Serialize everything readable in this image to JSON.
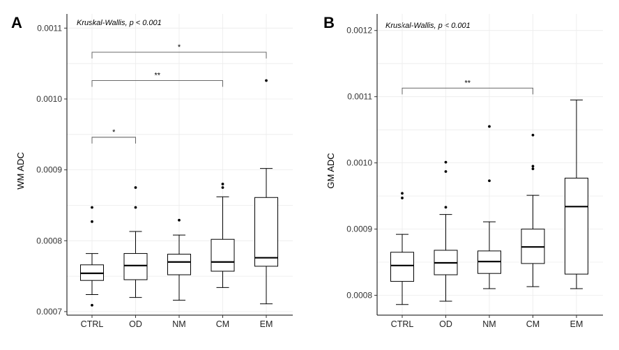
{
  "chart_data": [
    {
      "panel": "A",
      "type": "boxplot",
      "ylabel": "WM ADC",
      "xlabel": "",
      "annotation": "Kruskal-Wallis, p < 0.001",
      "ylim": [
        0.000695,
        0.00112
      ],
      "yticks": [
        0.0007,
        0.0008,
        0.0009,
        0.001,
        0.0011
      ],
      "ytick_labels": [
        "0.0007",
        "0.0008",
        "0.0009",
        "0.0010",
        "0.0011"
      ],
      "categories": [
        "CTRL",
        "OD",
        "NM",
        "CM",
        "EM"
      ],
      "boxes": [
        {
          "group": "CTRL",
          "whisker_low": 0.000724,
          "q1": 0.000744,
          "median": 0.000754,
          "q3": 0.000766,
          "whisker_high": 0.000782,
          "outliers": [
            0.000709,
            0.000827,
            0.000847
          ]
        },
        {
          "group": "OD",
          "whisker_low": 0.00072,
          "q1": 0.000745,
          "median": 0.000765,
          "q3": 0.000782,
          "whisker_high": 0.000813,
          "outliers": [
            0.000847,
            0.000875
          ]
        },
        {
          "group": "NM",
          "whisker_low": 0.000716,
          "q1": 0.000752,
          "median": 0.00077,
          "q3": 0.000781,
          "whisker_high": 0.000808,
          "outliers": [
            0.000829
          ]
        },
        {
          "group": "CM",
          "whisker_low": 0.000734,
          "q1": 0.000757,
          "median": 0.00077,
          "q3": 0.000802,
          "whisker_high": 0.000862,
          "outliers": [
            0.000875,
            0.00088
          ]
        },
        {
          "group": "EM",
          "whisker_low": 0.000711,
          "q1": 0.000764,
          "median": 0.000776,
          "q3": 0.000861,
          "whisker_high": 0.000902,
          "outliers": [
            0.001026
          ]
        }
      ],
      "significance": [
        {
          "from": "CTRL",
          "to": "OD",
          "label": "*",
          "y": 0.000946
        },
        {
          "from": "CTRL",
          "to": "CM",
          "label": "**",
          "y": 0.001026
        },
        {
          "from": "CTRL",
          "to": "EM",
          "label": "*",
          "y": 0.001066
        }
      ]
    },
    {
      "panel": "B",
      "type": "boxplot",
      "ylabel": "GM ADC",
      "xlabel": "",
      "annotation": "Kruskal-Wallis, p < 0.001",
      "ylim": [
        0.00077,
        0.001225
      ],
      "yticks": [
        0.0008,
        0.0009,
        0.001,
        0.0011,
        0.0012
      ],
      "ytick_labels": [
        "0.0008",
        "0.0009",
        "0.0010",
        "0.0011",
        "0.0012"
      ],
      "categories": [
        "CTRL",
        "OD",
        "NM",
        "CM",
        "EM"
      ],
      "boxes": [
        {
          "group": "CTRL",
          "whisker_low": 0.000786,
          "q1": 0.000821,
          "median": 0.000845,
          "q3": 0.000865,
          "whisker_high": 0.000892,
          "outliers": [
            0.000947,
            0.000954
          ]
        },
        {
          "group": "OD",
          "whisker_low": 0.000791,
          "q1": 0.000831,
          "median": 0.000849,
          "q3": 0.000868,
          "whisker_high": 0.000922,
          "outliers": [
            0.000933,
            0.000987,
            0.001001
          ]
        },
        {
          "group": "NM",
          "whisker_low": 0.00081,
          "q1": 0.000833,
          "median": 0.000851,
          "q3": 0.000867,
          "whisker_high": 0.000911,
          "outliers": [
            0.000973,
            0.001055
          ]
        },
        {
          "group": "CM",
          "whisker_low": 0.000813,
          "q1": 0.000848,
          "median": 0.000873,
          "q3": 0.0009,
          "whisker_high": 0.000951,
          "outliers": [
            0.000991,
            0.000995,
            0.001042
          ]
        },
        {
          "group": "EM",
          "whisker_low": 0.00081,
          "q1": 0.000832,
          "median": 0.000934,
          "q3": 0.000977,
          "whisker_high": 0.001095,
          "outliers": []
        }
      ],
      "significance": [
        {
          "from": "CTRL",
          "to": "CM",
          "label": "**",
          "y": 0.001113
        }
      ]
    }
  ]
}
